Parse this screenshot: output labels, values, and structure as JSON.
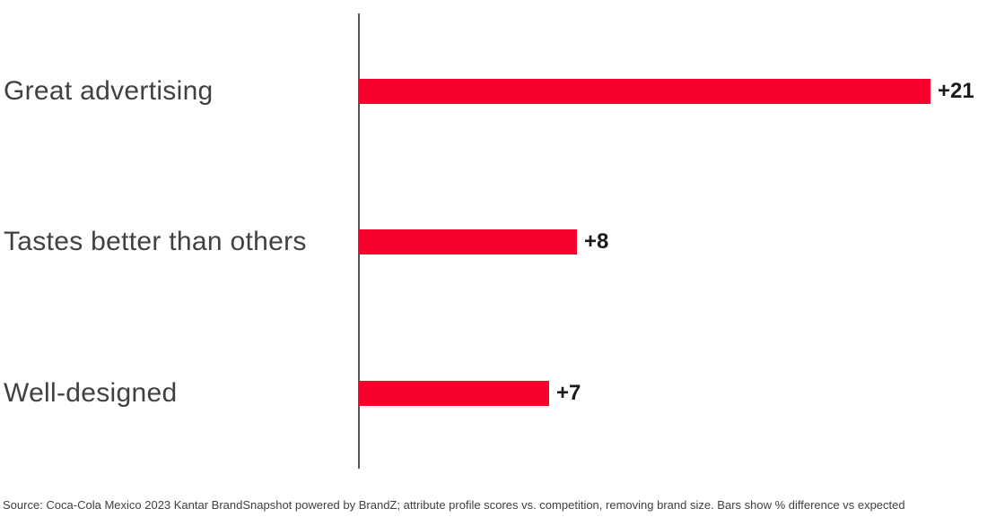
{
  "chart_data": {
    "type": "bar",
    "orientation": "horizontal",
    "title": "",
    "xlabel": "",
    "ylabel": "",
    "categories": [
      "Great advertising",
      "Tastes better than others",
      "Well-designed"
    ],
    "values": [
      21,
      8,
      7
    ],
    "value_labels": [
      "+21",
      "+8",
      "+7"
    ],
    "xlim": [
      0,
      22
    ],
    "grid": false,
    "legend": false,
    "bar_color": "#F8022D",
    "axis_color": "#555557",
    "label_color": "#414042",
    "value_label_color": "#1a1a1a"
  },
  "footer": {
    "source_text": "Source: Coca-Cola Mexico 2023 Kantar BrandSnapshot powered by BrandZ; attribute profile scores vs. competition, removing brand size. Bars show % difference vs expected"
  }
}
